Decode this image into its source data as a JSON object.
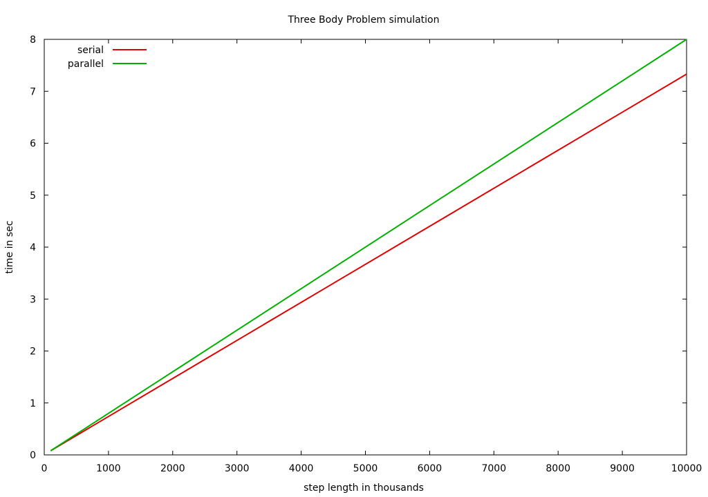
{
  "chart_data": {
    "type": "line",
    "title": "Three Body Problem simulation",
    "xlabel": "step length in thousands",
    "ylabel": "time in sec",
    "xlim": [
      0,
      10000
    ],
    "ylim": [
      0,
      8
    ],
    "xticks": [
      0,
      1000,
      2000,
      3000,
      4000,
      5000,
      6000,
      7000,
      8000,
      9000,
      10000
    ],
    "yticks": [
      0,
      1,
      2,
      3,
      4,
      5,
      6,
      7,
      8
    ],
    "grid": false,
    "legend_position": "top-left",
    "series": [
      {
        "name": "serial",
        "color": "#e00000",
        "x": [
          100,
          10000
        ],
        "y": [
          0.08,
          7.33
        ]
      },
      {
        "name": "parallel",
        "color": "#00b000",
        "x": [
          100,
          10000
        ],
        "y": [
          0.08,
          8.0
        ]
      }
    ]
  }
}
